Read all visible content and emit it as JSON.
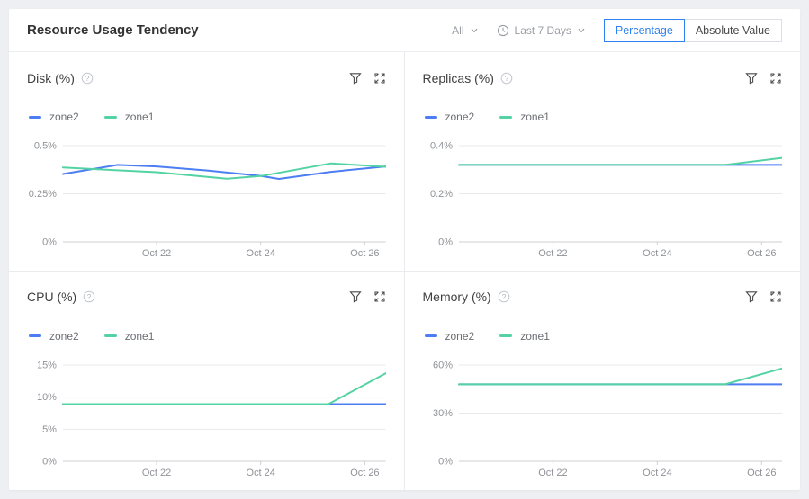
{
  "header": {
    "title": "Resource Usage Tendency",
    "scope_filter": {
      "value": "All"
    },
    "time_range": {
      "value": "Last 7 Days"
    },
    "view_toggle": {
      "options": [
        "Percentage",
        "Absolute Value"
      ],
      "selected": "Percentage"
    }
  },
  "colors": {
    "zone2_line": "#4c7df2",
    "zone1_line": "#53d3a3",
    "accent": "#2f80f0",
    "grid_line": "#e9e9e9",
    "axis_line": "#cfcfcf",
    "tick_text": "#8f9297"
  },
  "chart_data": [
    {
      "type": "line",
      "title": "Disk (%)",
      "legend_position": "top",
      "grid": true,
      "xlim": [
        20.2,
        26.4
      ],
      "ylim": [
        0,
        0.5
      ],
      "x_ticks": [
        {
          "v": 22,
          "label": "Oct 22"
        },
        {
          "v": 24,
          "label": "Oct 24"
        },
        {
          "v": 26,
          "label": "Oct 26"
        }
      ],
      "y_ticks": [
        {
          "v": 0,
          "label": "0%"
        },
        {
          "v": 0.25,
          "label": "0.25%"
        },
        {
          "v": 0.5,
          "label": "0.5%"
        }
      ],
      "series": [
        {
          "name": "zone2",
          "color": "#4c7df2",
          "points": [
            [
              20.2,
              0.353
            ],
            [
              21.25,
              0.4
            ],
            [
              22,
              0.392
            ],
            [
              23,
              0.37
            ],
            [
              24,
              0.343
            ],
            [
              24.35,
              0.327
            ],
            [
              25.35,
              0.364
            ],
            [
              26.4,
              0.392
            ]
          ]
        },
        {
          "name": "zone1",
          "color": "#53d3a3",
          "points": [
            [
              20.2,
              0.387
            ],
            [
              21.25,
              0.372
            ],
            [
              22,
              0.362
            ],
            [
              23.35,
              0.328
            ],
            [
              24,
              0.342
            ],
            [
              25.35,
              0.408
            ],
            [
              26.4,
              0.39
            ]
          ]
        }
      ]
    },
    {
      "type": "line",
      "title": "Replicas (%)",
      "legend_position": "top",
      "grid": true,
      "xlim": [
        20.2,
        26.4
      ],
      "ylim": [
        0,
        0.4
      ],
      "x_ticks": [
        {
          "v": 22,
          "label": "Oct 22"
        },
        {
          "v": 24,
          "label": "Oct 24"
        },
        {
          "v": 26,
          "label": "Oct 26"
        }
      ],
      "y_ticks": [
        {
          "v": 0,
          "label": "0%"
        },
        {
          "v": 0.2,
          "label": "0.2%"
        },
        {
          "v": 0.4,
          "label": "0.4%"
        }
      ],
      "series": [
        {
          "name": "zone2",
          "color": "#4c7df2",
          "points": [
            [
              20.2,
              0.32
            ],
            [
              26.4,
              0.32
            ]
          ]
        },
        {
          "name": "zone1",
          "color": "#53d3a3",
          "points": [
            [
              20.2,
              0.32
            ],
            [
              25.3,
              0.32
            ],
            [
              26.4,
              0.349
            ]
          ]
        }
      ]
    },
    {
      "type": "line",
      "title": "CPU (%)",
      "legend_position": "top",
      "grid": true,
      "xlim": [
        20.2,
        26.4
      ],
      "ylim": [
        0,
        15
      ],
      "x_ticks": [
        {
          "v": 22,
          "label": "Oct 22"
        },
        {
          "v": 24,
          "label": "Oct 24"
        },
        {
          "v": 26,
          "label": "Oct 26"
        }
      ],
      "y_ticks": [
        {
          "v": 0,
          "label": "0%"
        },
        {
          "v": 5,
          "label": "5%"
        },
        {
          "v": 10,
          "label": "10%"
        },
        {
          "v": 15,
          "label": "15%"
        }
      ],
      "series": [
        {
          "name": "zone2",
          "color": "#4c7df2",
          "points": [
            [
              20.2,
              8.9
            ],
            [
              26.4,
              8.9
            ]
          ]
        },
        {
          "name": "zone1",
          "color": "#53d3a3",
          "points": [
            [
              20.2,
              8.9
            ],
            [
              25.3,
              8.9
            ],
            [
              26.4,
              13.7
            ]
          ]
        }
      ]
    },
    {
      "type": "line",
      "title": "Memory (%)",
      "legend_position": "top",
      "grid": true,
      "xlim": [
        20.2,
        26.4
      ],
      "ylim": [
        0,
        60
      ],
      "x_ticks": [
        {
          "v": 22,
          "label": "Oct 22"
        },
        {
          "v": 24,
          "label": "Oct 24"
        },
        {
          "v": 26,
          "label": "Oct 26"
        }
      ],
      "y_ticks": [
        {
          "v": 0,
          "label": "0%"
        },
        {
          "v": 30,
          "label": "30%"
        },
        {
          "v": 60,
          "label": "60%"
        }
      ],
      "series": [
        {
          "name": "zone2",
          "color": "#4c7df2",
          "points": [
            [
              20.2,
              48
            ],
            [
              26.4,
              48
            ]
          ]
        },
        {
          "name": "zone1",
          "color": "#53d3a3",
          "points": [
            [
              20.2,
              48
            ],
            [
              25.3,
              48
            ],
            [
              26.4,
              58
            ]
          ]
        }
      ]
    }
  ]
}
